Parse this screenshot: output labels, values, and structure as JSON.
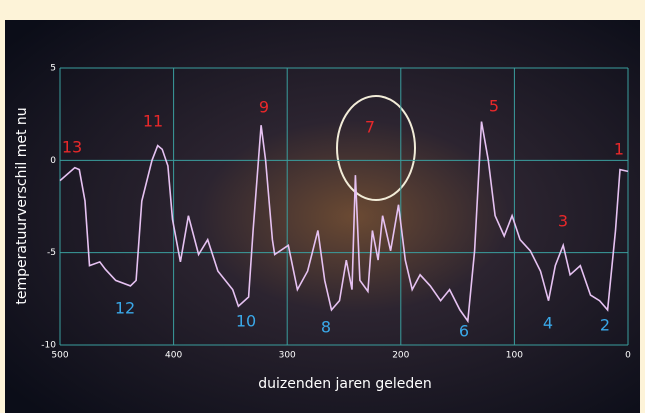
{
  "chart_data": {
    "type": "line",
    "xlabel": "duizenden jaren geleden",
    "ylabel": "temperatuurverschil met nu",
    "x": [
      500,
      487,
      483,
      478,
      474,
      465,
      460,
      451,
      438,
      433,
      428,
      419,
      414,
      410,
      405,
      401,
      394,
      387,
      378,
      370,
      361,
      348,
      343,
      334,
      330,
      323,
      319,
      313,
      311,
      299,
      291,
      282,
      273,
      267,
      261,
      254,
      248,
      243,
      240,
      236,
      229,
      225,
      220,
      216,
      209,
      202,
      196,
      190,
      183,
      174,
      165,
      157,
      148,
      141,
      135,
      129,
      123,
      117,
      109,
      102,
      95,
      86,
      77,
      70,
      64,
      57,
      51,
      42,
      33,
      25,
      18,
      11,
      7,
      0
    ],
    "series": [
      {
        "color": "#e6c2f2",
        "values": [
          -1.1,
          -0.4,
          -0.5,
          -2.2,
          -5.7,
          -5.5,
          -5.9,
          -6.5,
          -6.8,
          -6.5,
          -2.2,
          0,
          0.8,
          0.6,
          -0.3,
          -3.2,
          -5.5,
          -3,
          -5.1,
          -4.3,
          -6,
          -7,
          -7.9,
          -7.4,
          -3.8,
          1.9,
          0,
          -4.3,
          -5.1,
          -4.6,
          -7,
          -6,
          -3.8,
          -6.5,
          -8.1,
          -7.6,
          -5.4,
          -7,
          -0.8,
          -6.5,
          -7.1,
          -3.8,
          -5.4,
          -3,
          -4.9,
          -2.4,
          -5.4,
          -7,
          -6.2,
          -6.8,
          -7.6,
          -7,
          -8.1,
          -8.7,
          -4.9,
          2.1,
          0,
          -3,
          -4.1,
          -3,
          -4.3,
          -4.9,
          -6,
          -7.6,
          -5.7,
          -4.6,
          -6.2,
          -5.7,
          -7.3,
          -7.6,
          -8.1,
          -3.8,
          -0.5,
          -0.6
        ]
      }
    ],
    "xlim": [
      500,
      0
    ],
    "xticks": [
      500,
      400,
      300,
      200,
      100,
      0
    ],
    "ylim": [
      -10,
      5
    ],
    "yticks": [
      5,
      0,
      -5,
      -10
    ],
    "grid": true,
    "grid_color": "#3a9e9e",
    "annotations": [
      {
        "text": "13",
        "color": "#e8282a"
      },
      {
        "text": "11",
        "color": "#e8282a"
      },
      {
        "text": "9",
        "color": "#e8282a"
      },
      {
        "text": "7",
        "color": "#e8282a"
      },
      {
        "text": "5",
        "color": "#e8282a"
      },
      {
        "text": "3",
        "color": "#e8282a"
      },
      {
        "text": "1",
        "color": "#e8282a"
      },
      {
        "text": "12",
        "color": "#3aa8e8"
      },
      {
        "text": "10",
        "color": "#3aa8e8"
      },
      {
        "text": "8",
        "color": "#3aa8e8"
      },
      {
        "text": "6",
        "color": "#3aa8e8"
      },
      {
        "text": "4",
        "color": "#3aa8e8"
      },
      {
        "text": "2",
        "color": "#3aa8e8"
      }
    ]
  }
}
